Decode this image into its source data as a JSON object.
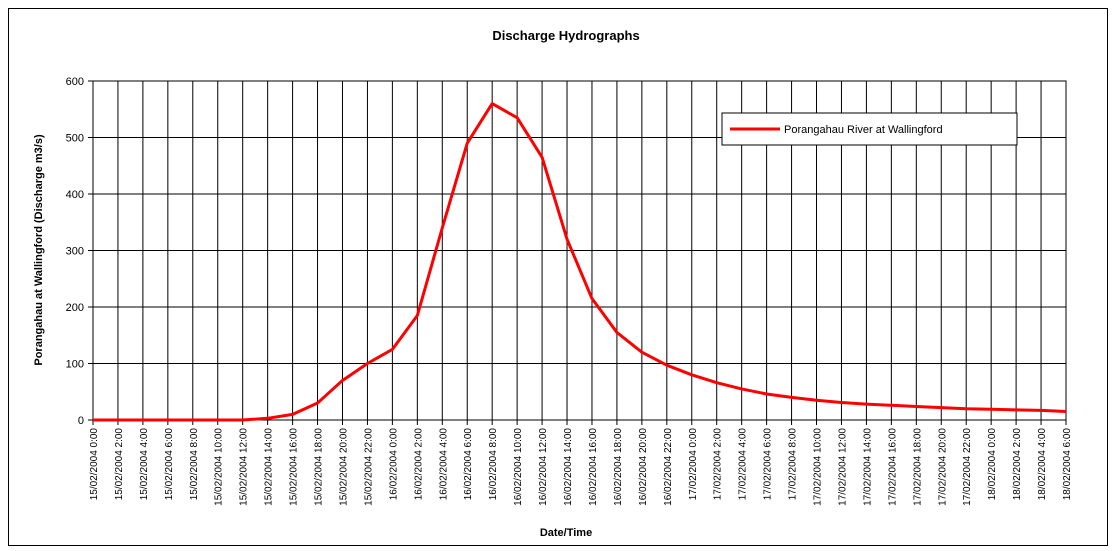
{
  "chart_data": {
    "type": "line",
    "title": "Discharge Hydrographs",
    "x_label": "Date/Time",
    "y_label": "Porangahau at Wallingford (Discharge m3/s)",
    "categories": [
      "15/02/2004 0:00",
      "15/02/2004 2:00",
      "15/02/2004 4:00",
      "15/02/2004 6:00",
      "15/02/2004 8:00",
      "15/02/2004 10:00",
      "15/02/2004 12:00",
      "15/02/2004 14:00",
      "15/02/2004 16:00",
      "15/02/2004 18:00",
      "15/02/2004 20:00",
      "15/02/2004 22:00",
      "16/02/2004 0:00",
      "16/02/2004 2:00",
      "16/02/2004 4:00",
      "16/02/2004 6:00",
      "16/02/2004 8:00",
      "16/02/2004 10:00",
      "16/02/2004 12:00",
      "16/02/2004 14:00",
      "16/02/2004 16:00",
      "16/02/2004 18:00",
      "16/02/2004 20:00",
      "16/02/2004 22:00",
      "17/02/2004 0:00",
      "17/02/2004 2:00",
      "17/02/2004 4:00",
      "17/02/2004 6:00",
      "17/02/2004 8:00",
      "17/02/2004 10:00",
      "17/02/2004 12:00",
      "17/02/2004 14:00",
      "17/02/2004 16:00",
      "17/02/2004 18:00",
      "17/02/2004 20:00",
      "17/02/2004 22:00",
      "18/02/2004 0:00",
      "18/02/2004 2:00",
      "18/02/2004 4:00",
      "18/02/2004 6:00"
    ],
    "series": [
      {
        "name": "Porangahau River at Wallingford",
        "color": "#ff0000",
        "values": [
          0,
          0,
          0,
          0,
          0,
          0,
          0,
          3,
          10,
          30,
          70,
          100,
          125,
          185,
          340,
          490,
          560,
          535,
          465,
          320,
          215,
          155,
          120,
          97,
          80,
          66,
          55,
          46,
          40,
          35,
          31,
          28,
          26,
          24,
          22,
          20,
          19,
          18,
          17,
          15
        ]
      }
    ],
    "ylim": [
      0,
      600
    ],
    "yticks": [
      0,
      100,
      200,
      300,
      400,
      500,
      600
    ],
    "grid": true,
    "legend": "upper right"
  }
}
